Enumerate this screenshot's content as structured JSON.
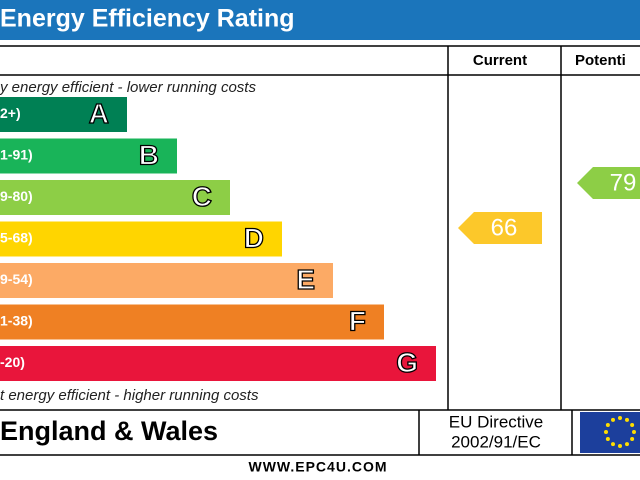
{
  "header": {
    "title": "Energy Efficiency Rating"
  },
  "columns": {
    "current": "Current",
    "potential": "Potenti"
  },
  "top_note": "y energy efficient - lower running costs",
  "bottom_note": "t energy efficient - higher running costs",
  "bands": [
    {
      "range": "2+)",
      "letter": "A",
      "color": "#008054"
    },
    {
      "range": "1-91)",
      "letter": "B",
      "color": "#19b459"
    },
    {
      "range": "9-80)",
      "letter": "C",
      "color": "#8dce46"
    },
    {
      "range": "5-68)",
      "letter": "D",
      "color": "#ffd500"
    },
    {
      "range": "9-54)",
      "letter": "E",
      "color": "#fcaa65"
    },
    {
      "range": "1-38)",
      "letter": "F",
      "color": "#ef8023"
    },
    {
      "range": "-20)",
      "letter": "G",
      "color": "#e9153b"
    }
  ],
  "current": {
    "value": "66",
    "color": "#fcc82a"
  },
  "potential": {
    "value": "79",
    "color": "#8dce46"
  },
  "footer": {
    "region": "England & Wales",
    "directive": "EU Directive",
    "directive_code": "2002/91/EC",
    "website": "WWW.EPC4U.COM"
  }
}
